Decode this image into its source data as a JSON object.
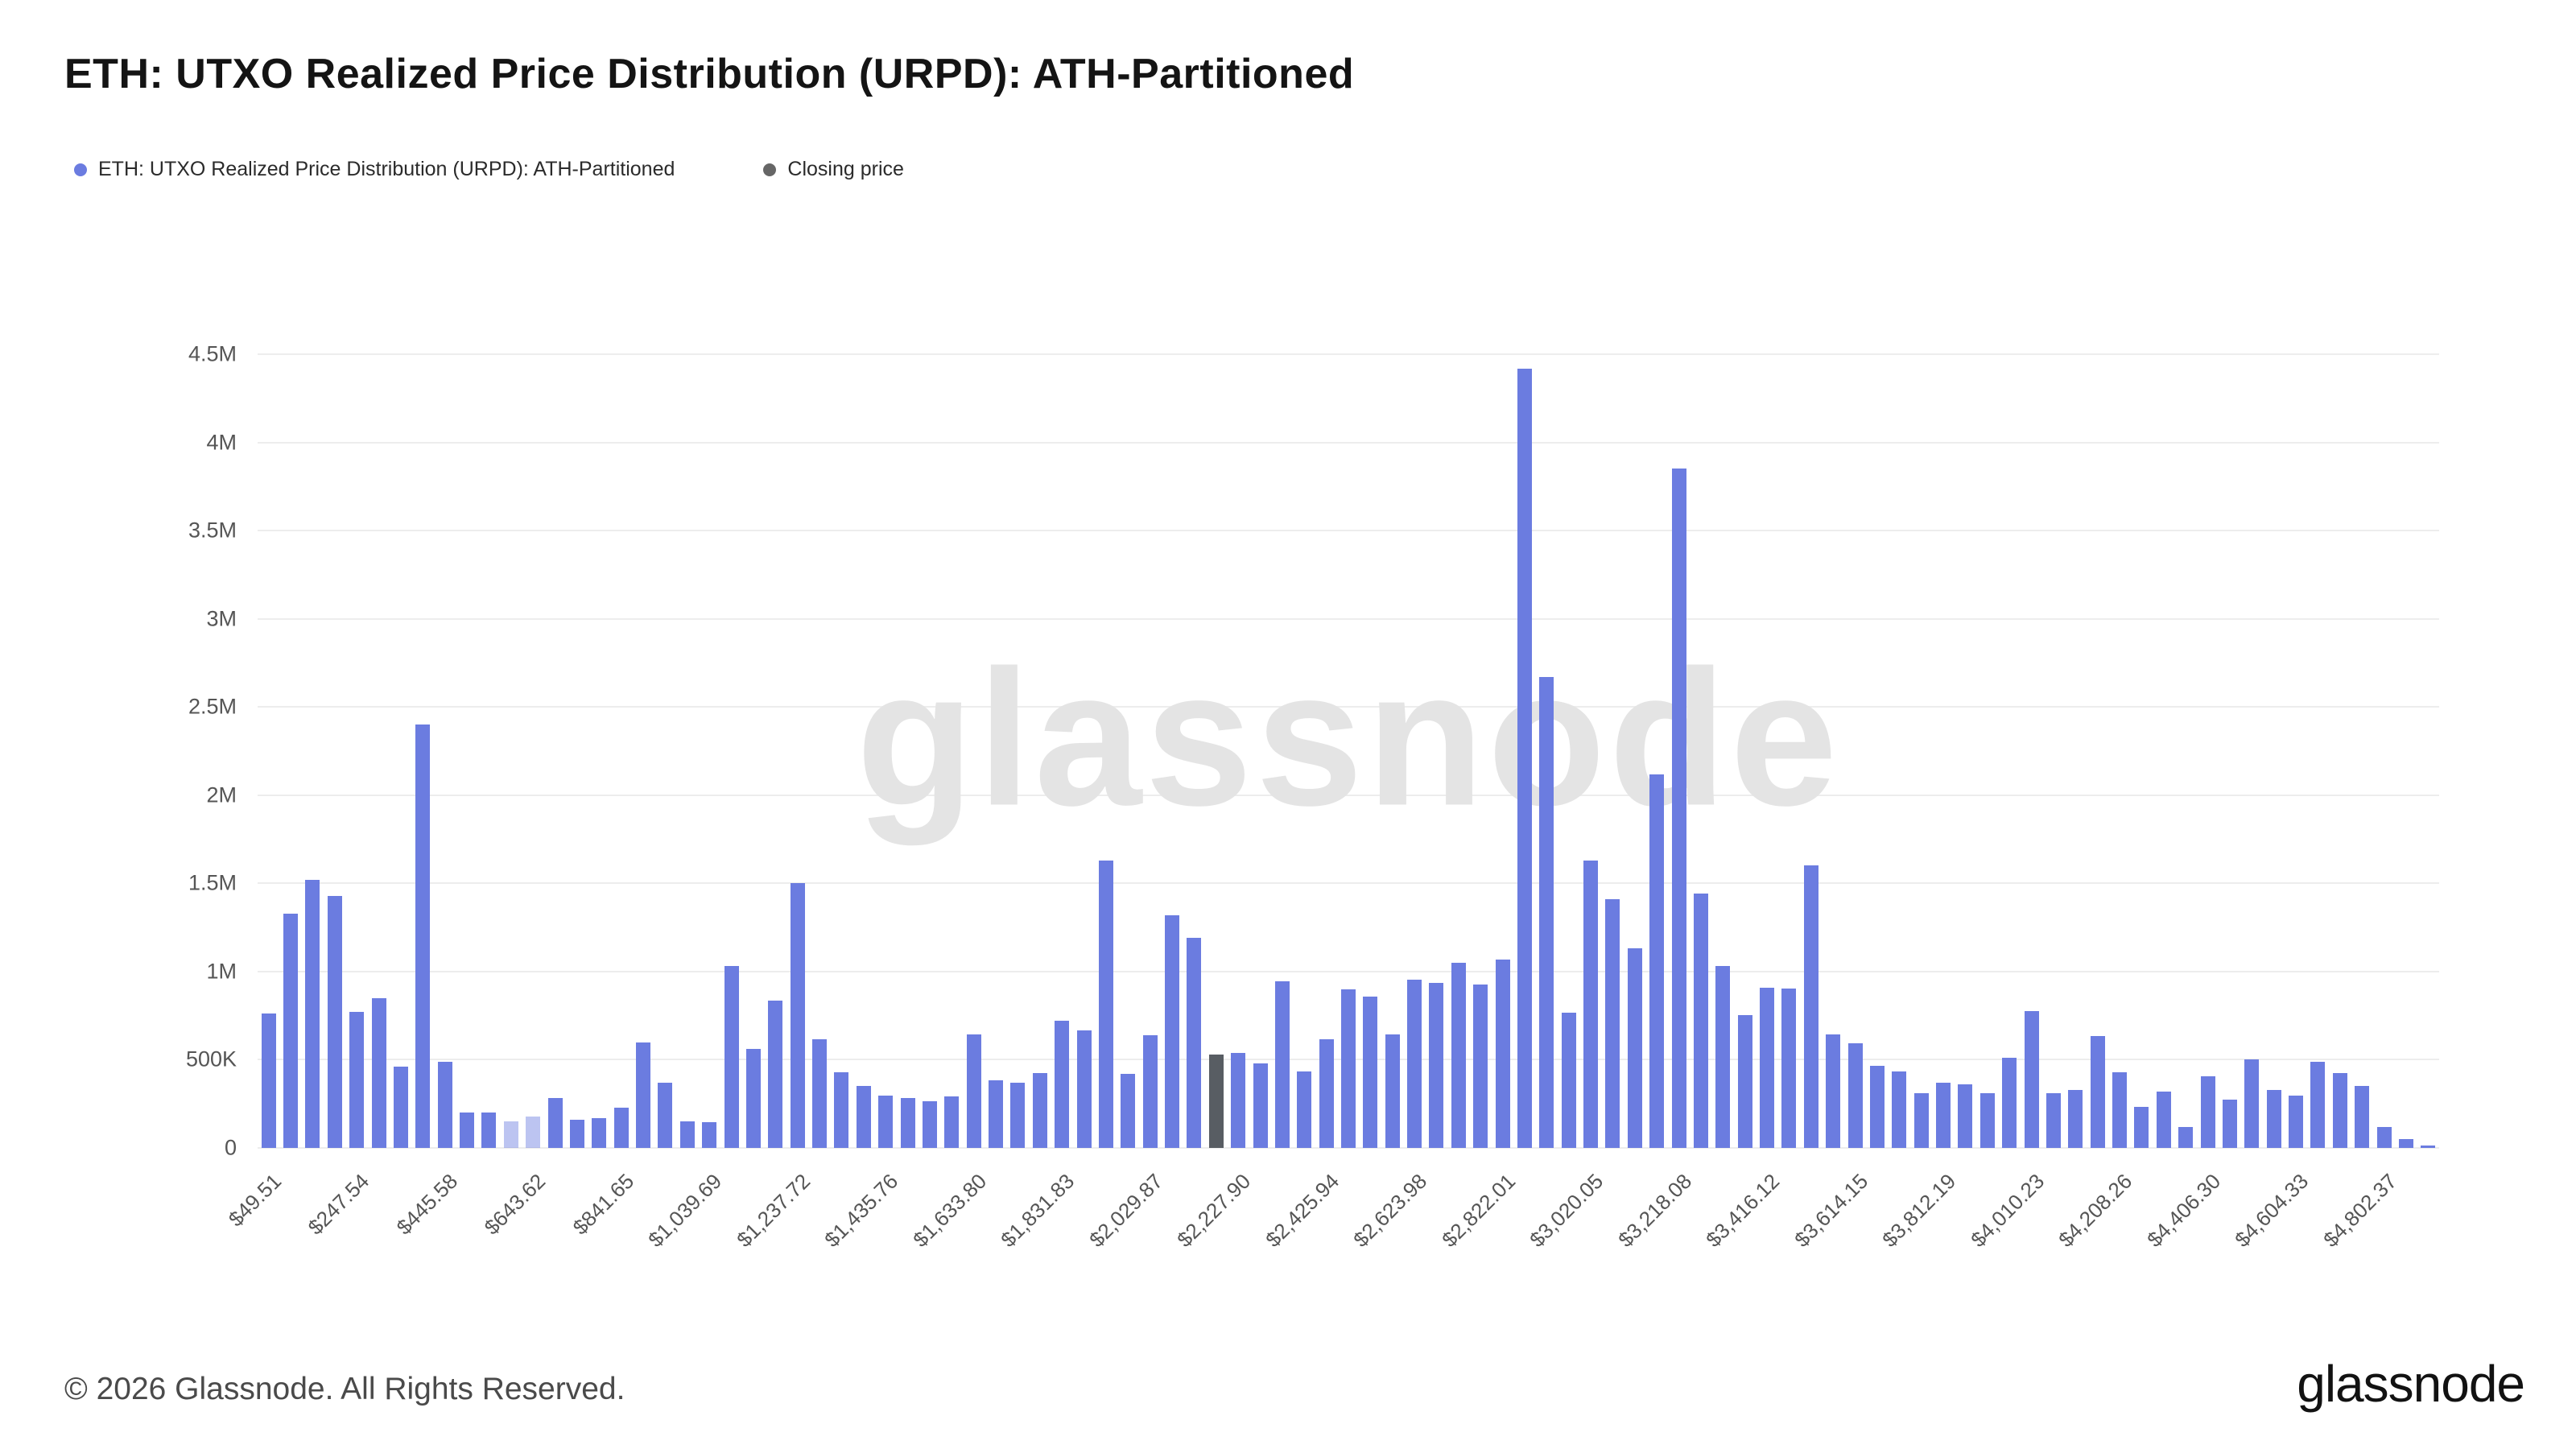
{
  "header": {
    "title": "ETH: UTXO Realized Price Distribution (URPD): ATH-Partitioned"
  },
  "legend": [
    {
      "label": "ETH: UTXO Realized Price Distribution (URPD): ATH-Partitioned",
      "color": "#6b7ce0"
    },
    {
      "label": "Closing price",
      "color": "#666666"
    }
  ],
  "watermark": "glassnode",
  "footer": {
    "copyright": "© 2026 Glassnode. All Rights Reserved.",
    "brand": "glassnode"
  },
  "chart_data": {
    "type": "bar",
    "title": "ETH: UTXO Realized Price Distribution (URPD): ATH-Partitioned",
    "xlabel": "",
    "ylabel": "",
    "ylim": [
      0,
      4500000
    ],
    "grid": true,
    "legend_position": "top-left",
    "ytick_labels": [
      "0",
      "500K",
      "1M",
      "1.5M",
      "2M",
      "2.5M",
      "3M",
      "3.5M",
      "4M",
      "4.5M"
    ],
    "xtick_labels": [
      "$49.51",
      "$247.54",
      "$445.58",
      "$643.62",
      "$841.65",
      "$1,039.69",
      "$1,237.72",
      "$1,435.76",
      "$1,633.80",
      "$1,831.83",
      "$2,029.87",
      "$2,227.90",
      "$2,425.94",
      "$2,623.98",
      "$2,822.01",
      "$3,020.05",
      "$3,218.08",
      "$3,416.12",
      "$3,614.15",
      "$3,812.19",
      "$4,010.23",
      "$4,208.26",
      "$4,406.30",
      "$4,604.33",
      "$4,802.37"
    ],
    "tick_every": 4,
    "values": [
      760000,
      1330000,
      1520000,
      1430000,
      770000,
      850000,
      460000,
      2400000,
      490000,
      200000,
      200000,
      150000,
      180000,
      285000,
      160000,
      170000,
      230000,
      600000,
      370000,
      150000,
      145000,
      1030000,
      560000,
      835000,
      1500000,
      615000,
      430000,
      350000,
      295000,
      285000,
      265000,
      290000,
      645000,
      385000,
      370000,
      425000,
      720000,
      665000,
      1630000,
      420000,
      640000,
      1320000,
      1190000,
      530000,
      540000,
      480000,
      945000,
      435000,
      615000,
      900000,
      860000,
      645000,
      955000,
      935000,
      1050000,
      925000,
      1070000,
      4420000,
      2670000,
      765000,
      1630000,
      1410000,
      1130000,
      2120000,
      3850000,
      1440000,
      1030000,
      755000,
      910000,
      905000,
      1600000,
      645000,
      595000,
      465000,
      435000,
      310000,
      370000,
      360000,
      310000,
      510000,
      775000,
      310000,
      330000,
      635000,
      430000,
      235000,
      320000,
      120000,
      405000,
      275000,
      500000,
      330000,
      295000,
      490000,
      425000,
      350000,
      120000,
      50000,
      15000
    ],
    "closing_index": 43,
    "light_indices": [
      11,
      12
    ],
    "light_opacity": 0.45,
    "bar_color": "#6b7ce0",
    "closing_color": "#585d63",
    "gridline_color": "#ededed"
  }
}
